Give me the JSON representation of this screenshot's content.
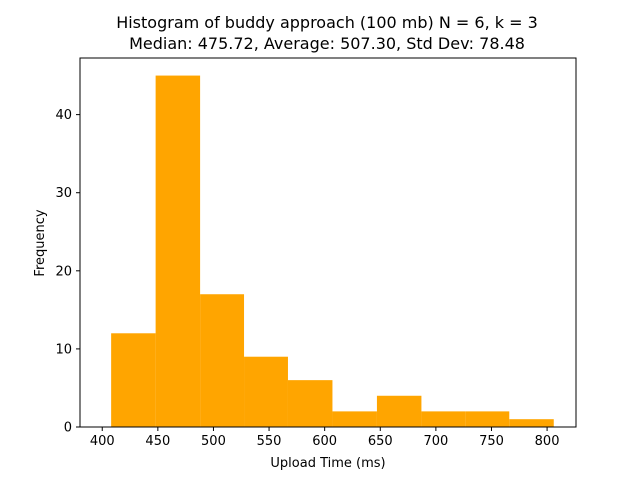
{
  "chart_data": {
    "type": "bar",
    "title": "Histogram of buddy approach (100 mb) N = 6, k = 3",
    "subtitle": "Median: 475.72, Average: 507.30, Std Dev: 78.48",
    "xlabel": "Upload Time (ms)",
    "ylabel": "Frequency",
    "bar_color": "#ffa500",
    "xlim": [
      380,
      826
    ],
    "ylim": [
      0,
      47.25
    ],
    "xticks": [
      400,
      450,
      500,
      550,
      600,
      650,
      700,
      750,
      800
    ],
    "yticks": [
      0,
      10,
      20,
      30,
      40
    ],
    "bins": [
      {
        "start": 408,
        "end": 448,
        "value": 12
      },
      {
        "start": 448,
        "end": 488,
        "value": 45
      },
      {
        "start": 488,
        "end": 527.5,
        "value": 17
      },
      {
        "start": 527.5,
        "end": 567,
        "value": 9
      },
      {
        "start": 567,
        "end": 607,
        "value": 6
      },
      {
        "start": 607,
        "end": 647,
        "value": 2
      },
      {
        "start": 647,
        "end": 687,
        "value": 4
      },
      {
        "start": 687,
        "end": 726.5,
        "value": 2
      },
      {
        "start": 726.5,
        "end": 766,
        "value": 2
      },
      {
        "start": 766,
        "end": 806,
        "value": 1
      }
    ],
    "grid": false,
    "legend": "none"
  }
}
